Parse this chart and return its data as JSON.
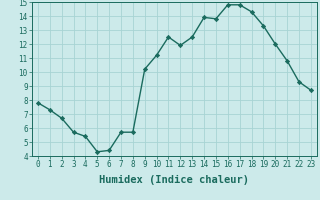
{
  "xlabel": "Humidex (Indice chaleur)",
  "ylabel": "",
  "x": [
    0,
    1,
    2,
    3,
    4,
    5,
    6,
    7,
    8,
    9,
    10,
    11,
    12,
    13,
    14,
    15,
    16,
    17,
    18,
    19,
    20,
    21,
    22,
    23
  ],
  "y": [
    7.8,
    7.3,
    6.7,
    5.7,
    5.4,
    4.3,
    4.4,
    5.7,
    5.7,
    10.2,
    11.2,
    12.5,
    11.9,
    12.5,
    13.9,
    13.8,
    14.8,
    14.8,
    14.3,
    13.3,
    12.0,
    10.8,
    9.3,
    8.7
  ],
  "line_color": "#1a6b5e",
  "marker": "D",
  "marker_size": 2.2,
  "bg_color": "#cceaea",
  "grid_color": "#a8d4d4",
  "ylim": [
    4,
    15
  ],
  "yticks": [
    4,
    5,
    6,
    7,
    8,
    9,
    10,
    11,
    12,
    13,
    14,
    15
  ],
  "xticks": [
    0,
    1,
    2,
    3,
    4,
    5,
    6,
    7,
    8,
    9,
    10,
    11,
    12,
    13,
    14,
    15,
    16,
    17,
    18,
    19,
    20,
    21,
    22,
    23
  ],
  "tick_label_fontsize": 5.5,
  "xlabel_fontsize": 7.5,
  "linewidth": 1.0
}
